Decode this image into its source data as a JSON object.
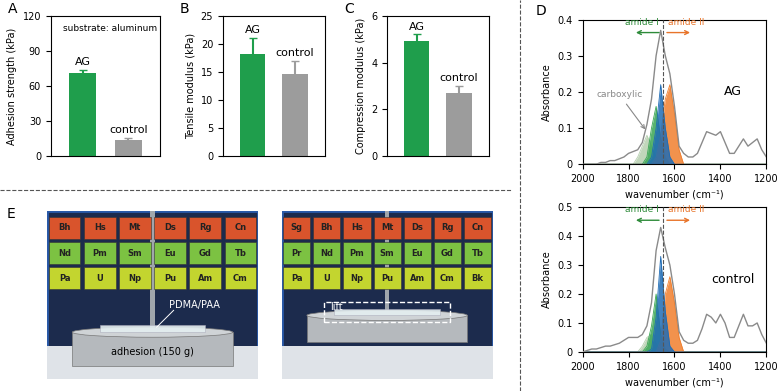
{
  "chart_data": [
    {
      "type": "bar",
      "panel": "A",
      "y_label": "Adhesion strength (kPa)",
      "categories": [
        "AG",
        "control"
      ],
      "values": [
        71,
        14
      ],
      "errors": [
        3,
        2
      ],
      "colors": [
        "#1f9e4c",
        "#9c9c9c"
      ],
      "ylim": [
        0,
        120
      ],
      "yticks": [
        0,
        30,
        60,
        90,
        120
      ],
      "tick_labels": "y",
      "annotations": [
        "substrate: aluminum"
      ]
    },
    {
      "type": "bar",
      "panel": "B",
      "y_label": "Tensile modulus (kPa)",
      "categories": [
        "AG",
        "control"
      ],
      "values": [
        18.2,
        14.7
      ],
      "errors": [
        2.8,
        2.3
      ],
      "colors": [
        "#1f9e4c",
        "#9c9c9c"
      ],
      "ylim": [
        0,
        25
      ],
      "yticks": [
        0,
        5,
        10,
        15,
        20,
        25
      ],
      "tick_labels": "y"
    },
    {
      "type": "bar",
      "panel": "C",
      "y_label": "Compression modulus (kPa)",
      "categories": [
        "AG",
        "control"
      ],
      "values": [
        4.9,
        2.7
      ],
      "errors": [
        0.3,
        0.3
      ],
      "colors": [
        "#1f9e4c",
        "#9c9c9c"
      ],
      "ylim": [
        0,
        6
      ],
      "yticks": [
        0,
        2,
        4,
        6
      ],
      "tick_labels": "y"
    },
    {
      "type": "line",
      "panel": "D",
      "x_label": "wavenumber (cm⁻¹)",
      "y_label": "Absorbance",
      "x": [
        2000,
        1980,
        1960,
        1940,
        1920,
        1900,
        1880,
        1860,
        1840,
        1820,
        1800,
        1780,
        1760,
        1740,
        1720,
        1700,
        1680,
        1660,
        1640,
        1620,
        1600,
        1580,
        1560,
        1540,
        1520,
        1500,
        1480,
        1460,
        1440,
        1420,
        1400,
        1380,
        1360,
        1340,
        1320,
        1300,
        1280,
        1260,
        1240,
        1220,
        1200
      ],
      "xlim": [
        2000,
        1200
      ],
      "xticks": [
        2000,
        1800,
        1600,
        1400,
        1200
      ],
      "ylim": [
        0,
        0.4
      ],
      "yticks": [
        0,
        0.1,
        0.2,
        0.3,
        0.4
      ],
      "vline": 1650,
      "annotations": [
        "amide I",
        "amide II",
        "carboxylic",
        "AG"
      ],
      "series": [
        {
          "type": "line",
          "color": "#8a8a8a",
          "values": [
            0,
            0,
            0,
            0,
            0.005,
            0.005,
            0.01,
            0.01,
            0.015,
            0.02,
            0.03,
            0.035,
            0.04,
            0.06,
            0.11,
            0.18,
            0.3,
            0.37,
            0.3,
            0.25,
            0.16,
            0.05,
            0.03,
            0.02,
            0.02,
            0.03,
            0.06,
            0.09,
            0.085,
            0.08,
            0.09,
            0.06,
            0.03,
            0.03,
            0.05,
            0.07,
            0.05,
            0.06,
            0.07,
            0.04,
            0.02
          ]
        },
        {
          "type": "area",
          "color": "#b7cfb0",
          "values": [
            0,
            0,
            0,
            0,
            0,
            0,
            0,
            0,
            0,
            0,
            0,
            0,
            0.02,
            0.05,
            0.08,
            0.05,
            0.02,
            0,
            0,
            0,
            0,
            0,
            0,
            0,
            0,
            0,
            0,
            0,
            0,
            0,
            0,
            0,
            0,
            0,
            0,
            0,
            0,
            0,
            0,
            0,
            0
          ]
        },
        {
          "type": "area",
          "color": "#3aa655",
          "values": [
            0,
            0,
            0,
            0,
            0,
            0,
            0,
            0,
            0,
            0,
            0,
            0,
            0,
            0,
            0.02,
            0.1,
            0.16,
            0.07,
            0.02,
            0,
            0,
            0,
            0,
            0,
            0,
            0,
            0,
            0,
            0,
            0,
            0,
            0,
            0,
            0,
            0,
            0,
            0,
            0,
            0,
            0,
            0
          ]
        },
        {
          "type": "area",
          "color": "#f07f2e",
          "values": [
            0,
            0,
            0,
            0,
            0,
            0,
            0,
            0,
            0,
            0,
            0,
            0,
            0,
            0,
            0,
            0,
            0.02,
            0.08,
            0.18,
            0.22,
            0.14,
            0.04,
            0,
            0,
            0,
            0,
            0,
            0,
            0,
            0,
            0,
            0,
            0,
            0,
            0,
            0,
            0,
            0,
            0,
            0,
            0
          ]
        },
        {
          "type": "area",
          "color": "#1f6cb5",
          "values": [
            0,
            0,
            0,
            0,
            0,
            0,
            0,
            0,
            0,
            0,
            0,
            0,
            0,
            0,
            0,
            0.02,
            0.1,
            0.22,
            0.1,
            0.02,
            0,
            0,
            0,
            0,
            0,
            0,
            0,
            0,
            0,
            0,
            0,
            0,
            0,
            0,
            0,
            0,
            0,
            0,
            0,
            0,
            0
          ]
        }
      ]
    },
    {
      "type": "line",
      "x_label": "wavenumber (cm⁻¹)",
      "y_label": "Absorbance",
      "x": [
        2000,
        1980,
        1960,
        1940,
        1920,
        1900,
        1880,
        1860,
        1840,
        1820,
        1800,
        1780,
        1760,
        1740,
        1720,
        1700,
        1680,
        1660,
        1640,
        1620,
        1600,
        1580,
        1560,
        1540,
        1520,
        1500,
        1480,
        1460,
        1440,
        1420,
        1400,
        1380,
        1360,
        1340,
        1320,
        1300,
        1280,
        1260,
        1240,
        1220,
        1200
      ],
      "xlim": [
        2000,
        1200
      ],
      "xticks": [
        2000,
        1800,
        1600,
        1400,
        1200
      ],
      "ylim": [
        0,
        0.5
      ],
      "yticks": [
        0,
        0.1,
        0.2,
        0.3,
        0.4,
        0.5
      ],
      "vline": 1650,
      "annotations": [
        "amide I",
        "amide II",
        "control"
      ],
      "series": [
        {
          "type": "line",
          "color": "#8a8a8a",
          "values": [
            0,
            0.005,
            0.01,
            0.01,
            0.015,
            0.02,
            0.02,
            0.025,
            0.03,
            0.04,
            0.05,
            0.05,
            0.05,
            0.06,
            0.09,
            0.17,
            0.35,
            0.43,
            0.36,
            0.3,
            0.2,
            0.07,
            0.04,
            0.03,
            0.03,
            0.04,
            0.08,
            0.13,
            0.12,
            0.1,
            0.13,
            0.1,
            0.05,
            0.05,
            0.09,
            0.13,
            0.09,
            0.09,
            0.1,
            0.06,
            0.03
          ]
        },
        {
          "type": "area",
          "color": "#b7cfb0",
          "values": [
            0,
            0,
            0,
            0,
            0,
            0,
            0,
            0,
            0,
            0,
            0,
            0,
            0,
            0.02,
            0.05,
            0.06,
            0.03,
            0,
            0,
            0,
            0,
            0,
            0,
            0,
            0,
            0,
            0,
            0,
            0,
            0,
            0,
            0,
            0,
            0,
            0,
            0,
            0,
            0,
            0,
            0,
            0
          ]
        },
        {
          "type": "area",
          "color": "#3aa655",
          "values": [
            0,
            0,
            0,
            0,
            0,
            0,
            0,
            0,
            0,
            0,
            0,
            0,
            0,
            0,
            0.02,
            0.09,
            0.2,
            0.06,
            0.01,
            0,
            0,
            0,
            0,
            0,
            0,
            0,
            0,
            0,
            0,
            0,
            0,
            0,
            0,
            0,
            0,
            0,
            0,
            0,
            0,
            0,
            0
          ]
        },
        {
          "type": "area",
          "color": "#f07f2e",
          "values": [
            0,
            0,
            0,
            0,
            0,
            0,
            0,
            0,
            0,
            0,
            0,
            0,
            0,
            0,
            0,
            0,
            0,
            0.04,
            0.2,
            0.26,
            0.17,
            0.05,
            0,
            0,
            0,
            0,
            0,
            0,
            0,
            0,
            0,
            0,
            0,
            0,
            0,
            0,
            0,
            0,
            0,
            0,
            0
          ]
        },
        {
          "type": "area",
          "color": "#1f6cb5",
          "values": [
            0,
            0,
            0,
            0,
            0,
            0,
            0,
            0,
            0,
            0,
            0,
            0,
            0,
            0,
            0,
            0.01,
            0.12,
            0.33,
            0.14,
            0.02,
            0,
            0,
            0,
            0,
            0,
            0,
            0,
            0,
            0,
            0,
            0,
            0,
            0,
            0,
            0,
            0,
            0,
            0,
            0,
            0,
            0
          ]
        }
      ]
    }
  ],
  "photos": {
    "panel": "E",
    "images": [
      {
        "tiles": [
          [
            "Bh",
            "Hs",
            "Mt",
            "Ds",
            "Rg",
            "Cn"
          ],
          [
            "Nd",
            "Pm",
            "Sm",
            "Eu",
            "Gd",
            "Tb"
          ],
          [
            "Pa",
            "U",
            "Np",
            "Pu",
            "Am",
            "Cm"
          ]
        ],
        "labels": [
          "PDMA/PAA",
          "adhesion (150 g)"
        ]
      },
      {
        "tiles": [
          [
            "Sg",
            "Bh",
            "Hs",
            "Mt",
            "Ds",
            "Rg",
            "Cn"
          ],
          [
            "Pr",
            "Nd",
            "Pm",
            "Sm",
            "Eu",
            "Gd",
            "Tb"
          ],
          [
            "Pa",
            "U",
            "Np",
            "Pu",
            "Am",
            "Cm",
            "Bk"
          ]
        ],
        "labels": [
          "lift"
        ]
      }
    ]
  }
}
